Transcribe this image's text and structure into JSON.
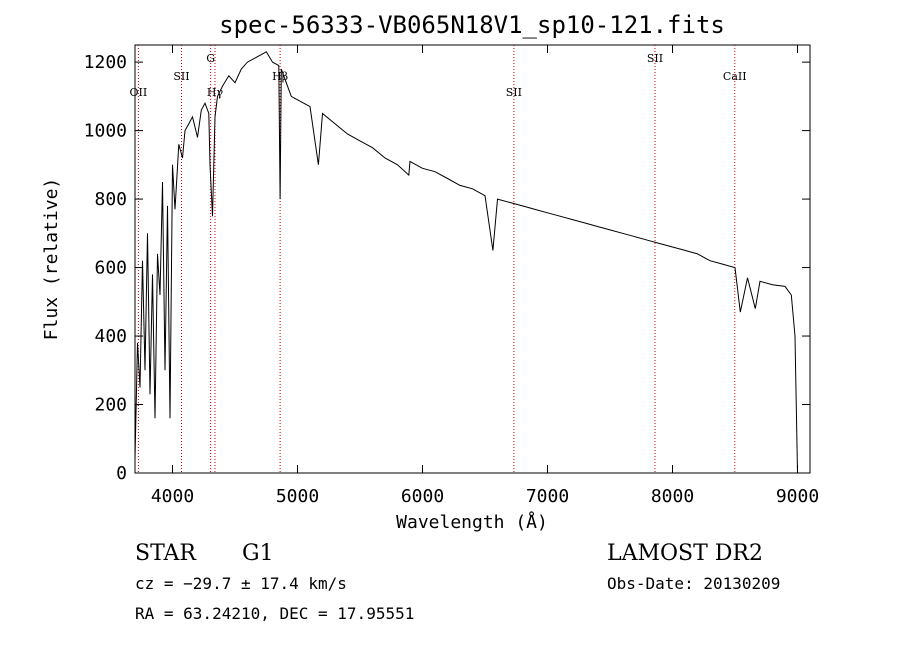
{
  "chart_data": {
    "type": "line",
    "title": "spec-56333-VB065N18V1_sp10-121.fits",
    "xlabel": "Wavelength (Å)",
    "ylabel": "Flux (relative)",
    "xlim": [
      3700,
      9100
    ],
    "ylim": [
      0,
      1250
    ],
    "xticks": [
      4000,
      5000,
      6000,
      7000,
      8000,
      9000
    ],
    "yticks": [
      0,
      200,
      400,
      600,
      800,
      1000,
      1200
    ],
    "grid": false,
    "line_color": "#000000",
    "marker_color": "#cc0000",
    "series": [
      {
        "x": [
          3700,
          3720,
          3740,
          3760,
          3780,
          3800,
          3820,
          3840,
          3860,
          3880,
          3900,
          3920,
          3940,
          3960,
          3980,
          4000,
          4020,
          4050,
          4080,
          4100,
          4130,
          4160,
          4200,
          4230,
          4260,
          4290,
          4300,
          4320,
          4340,
          4360,
          4400,
          4450,
          4500,
          4550,
          4600,
          4650,
          4700,
          4750,
          4800,
          4850,
          4861,
          4870,
          4900,
          4950,
          5000,
          5100,
          5167,
          5200,
          5300,
          5400,
          5500,
          5600,
          5700,
          5800,
          5890,
          5900,
          6000,
          6100,
          6200,
          6300,
          6400,
          6500,
          6563,
          6600,
          6700,
          6800,
          6900,
          7000,
          7100,
          7200,
          7300,
          7400,
          7500,
          7600,
          7700,
          7800,
          7900,
          8000,
          8100,
          8200,
          8300,
          8400,
          8500,
          8542,
          8600,
          8662,
          8700,
          8800,
          8900,
          8950,
          8980,
          9000
        ],
        "y": [
          40,
          380,
          250,
          620,
          300,
          700,
          230,
          580,
          160,
          640,
          520,
          850,
          300,
          780,
          160,
          900,
          770,
          960,
          920,
          1000,
          1020,
          1040,
          980,
          1060,
          1080,
          1050,
          900,
          750,
          1040,
          1100,
          1130,
          1160,
          1140,
          1180,
          1200,
          1210,
          1220,
          1230,
          1200,
          1190,
          800,
          1180,
          1150,
          1100,
          1090,
          1070,
          900,
          1050,
          1020,
          990,
          970,
          950,
          920,
          900,
          870,
          910,
          890,
          880,
          860,
          840,
          830,
          810,
          650,
          800,
          790,
          780,
          770,
          760,
          750,
          740,
          730,
          720,
          710,
          700,
          690,
          680,
          670,
          660,
          650,
          640,
          620,
          610,
          600,
          470,
          570,
          480,
          560,
          550,
          545,
          520,
          400,
          0
        ]
      }
    ],
    "line_markers": [
      {
        "label": "OII",
        "x": 3727
      },
      {
        "label": "SII",
        "x": 4072
      },
      {
        "label": "G",
        "x": 4305
      },
      {
        "label": "Hγ",
        "x": 4340
      },
      {
        "label": "Hβ",
        "x": 4861
      },
      {
        "label": "SII",
        "x": 6731
      },
      {
        "label": "SII",
        "x": 7860
      },
      {
        "label": "CaII",
        "x": 8498
      }
    ]
  },
  "info": {
    "class": "STAR",
    "subclass": "G1",
    "cz": "cz = −29.7 ± 17.4 km/s",
    "coords": "RA =  63.24210, DEC =  17.95551",
    "survey": "LAMOST DR2",
    "obs_date": "Obs-Date: 20130209"
  }
}
